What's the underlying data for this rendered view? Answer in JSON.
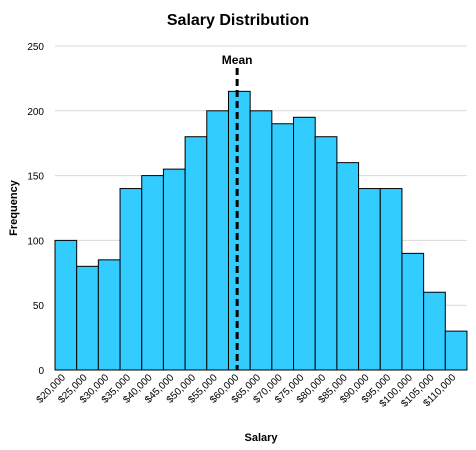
{
  "chart_data": {
    "type": "bar",
    "title": "Salary Distribution",
    "xlabel": "Salary",
    "ylabel": "Frequency",
    "ylim": [
      0,
      250
    ],
    "yticks": [
      0,
      50,
      100,
      150,
      200,
      250
    ],
    "categories": [
      "$20,000",
      "$25,000",
      "$30,000",
      "$35,000",
      "$40,000",
      "$45,000",
      "$50,000",
      "$55,000",
      "$60,000",
      "$65,000",
      "$70,000",
      "$75,000",
      "$80,000",
      "$85,000",
      "$90,000",
      "$95,000",
      "$100,000",
      "$105,000",
      "$110,000"
    ],
    "values": [
      100,
      80,
      85,
      140,
      150,
      155,
      180,
      200,
      215,
      200,
      190,
      195,
      180,
      160,
      140,
      140,
      90,
      60,
      30
    ],
    "annotation": {
      "label": "Mean",
      "position_category_index": 8.4
    },
    "grid": true,
    "legend": "none",
    "bar_color": "#33CCFF",
    "bar_edge_color": "#000000",
    "grid_color": "#D9D9D9"
  }
}
